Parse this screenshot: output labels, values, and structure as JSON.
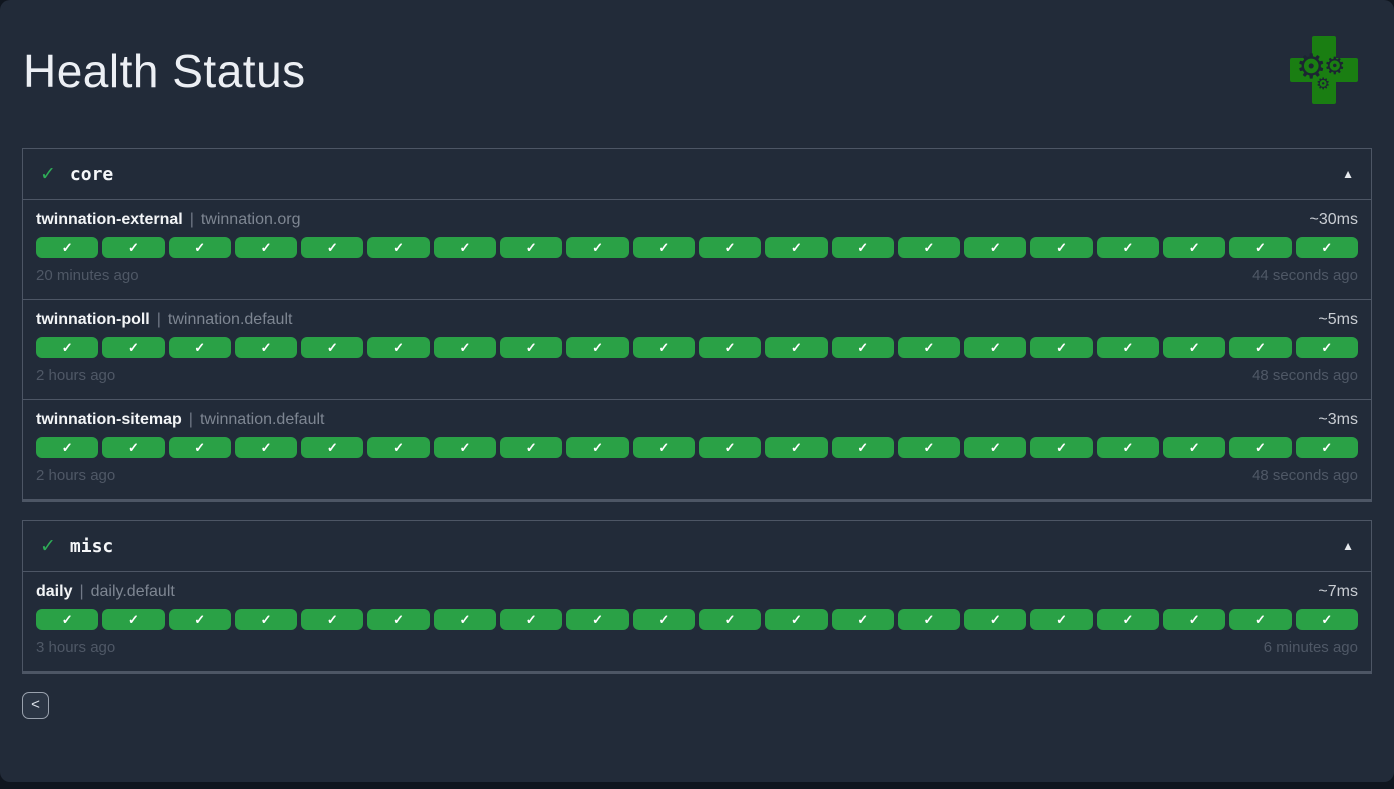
{
  "page": {
    "title": "Health Status"
  },
  "logo": {
    "icon": "health-cross-with-gears-icon",
    "cross_color": "#1a7e12",
    "gear_glyph": "⚙"
  },
  "groups": [
    {
      "name": "core",
      "status_icon": "✓",
      "collapse_icon": "▲",
      "services": [
        {
          "name": "twinnation-external",
          "separator": "|",
          "group_label": "twinnation.org",
          "response_time": "~30ms",
          "history": {
            "count": 20,
            "status": "up",
            "icon": "✓"
          },
          "oldest_result_age": "20 minutes ago",
          "newest_result_age": "44 seconds ago"
        },
        {
          "name": "twinnation-poll",
          "separator": "|",
          "group_label": "twinnation.default",
          "response_time": "~5ms",
          "history": {
            "count": 20,
            "status": "up",
            "icon": "✓"
          },
          "oldest_result_age": "2 hours ago",
          "newest_result_age": "48 seconds ago"
        },
        {
          "name": "twinnation-sitemap",
          "separator": "|",
          "group_label": "twinnation.default",
          "response_time": "~3ms",
          "history": {
            "count": 20,
            "status": "up",
            "icon": "✓"
          },
          "oldest_result_age": "2 hours ago",
          "newest_result_age": "48 seconds ago"
        }
      ]
    },
    {
      "name": "misc",
      "status_icon": "✓",
      "collapse_icon": "▲",
      "services": [
        {
          "name": "daily",
          "separator": "|",
          "group_label": "daily.default",
          "response_time": "~7ms",
          "history": {
            "count": 20,
            "status": "up",
            "icon": "✓"
          },
          "oldest_result_age": "3 hours ago",
          "newest_result_age": "6 minutes ago"
        }
      ]
    }
  ],
  "footer": {
    "back_button_label": "<"
  },
  "colors": {
    "background": "#10161f",
    "surface": "#222b39",
    "border": "#4d5665",
    "success_badge": "#2aa146",
    "success_check": "#2eac57",
    "text_primary": "#f2f4f6",
    "text_muted": "#7e8692",
    "text_faint": "#4f5866"
  }
}
